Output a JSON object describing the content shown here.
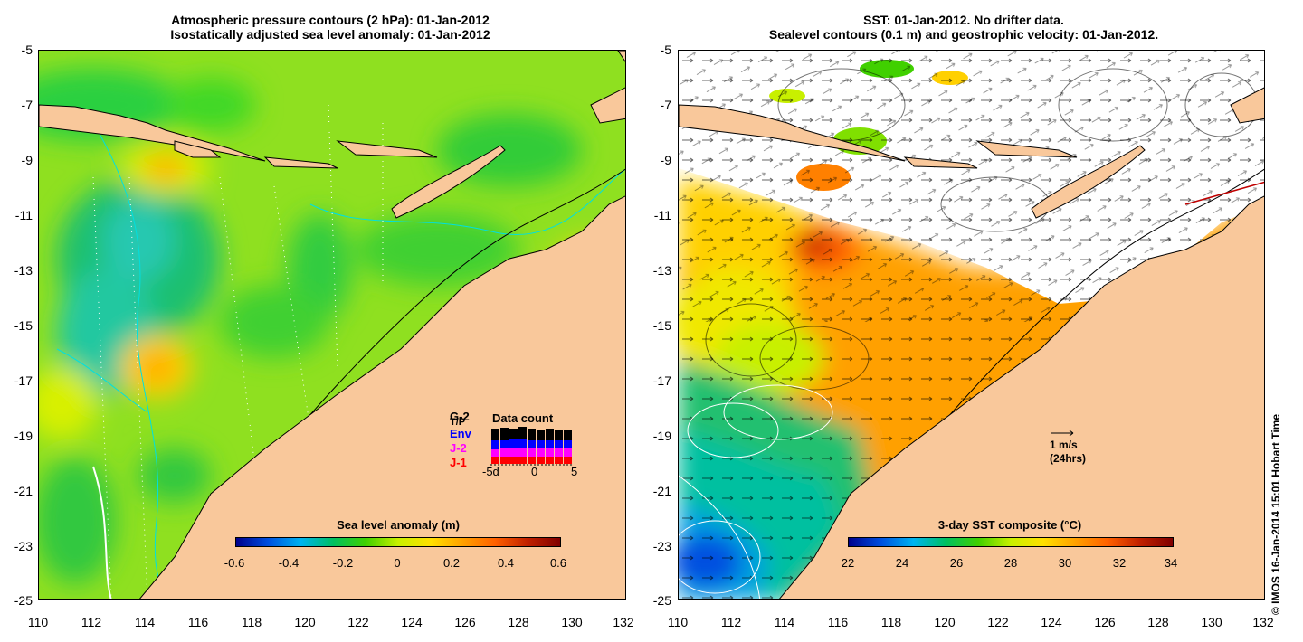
{
  "left_panel": {
    "title_line1": "Atmospheric pressure contours (2 hPa): 01-Jan-2012",
    "title_line2": "Isostatically adjusted sea level anomaly: 01-Jan-2012",
    "colorbar": {
      "label": "Sea level anomaly (m)",
      "ticks": [
        "-0.6",
        "-0.4",
        "-0.2",
        "0",
        "0.2",
        "0.4",
        "0.6"
      ]
    },
    "data_count": {
      "title": "Data count",
      "satellites": [
        {
          "name": "G-2",
          "color": "#000000"
        },
        {
          "name": "T/P",
          "color": "#000000"
        },
        {
          "name": "Env",
          "color": "#0000ff"
        },
        {
          "name": "J-2",
          "color": "#ff00ff"
        },
        {
          "name": "J-1",
          "color": "#ff0000"
        }
      ],
      "axis_ticks": [
        "-5d",
        "0",
        "5"
      ]
    }
  },
  "right_panel": {
    "title_line1": "SST: 01-Jan-2012. No drifter data.",
    "title_line2": "Sealevel contours (0.1 m) and geostrophic velocity: 01-Jan-2012.",
    "colorbar": {
      "label": "3-day SST composite (°C)",
      "ticks": [
        "22",
        "24",
        "26",
        "28",
        "30",
        "32",
        "34"
      ]
    },
    "velocity_scale": {
      "line1": "1 m/s",
      "line2": "(24hrs)"
    }
  },
  "axes": {
    "lat_ticks": [
      "-5",
      "-7",
      "-9",
      "-11",
      "-13",
      "-15",
      "-17",
      "-19",
      "-21",
      "-23",
      "-25"
    ],
    "lon_ticks": [
      "110",
      "112",
      "114",
      "116",
      "118",
      "120",
      "122",
      "124",
      "126",
      "128",
      "130",
      "132"
    ]
  },
  "credit": "© IMOS 16-Jan-2014 15:01 Hobart Time",
  "colors": {
    "land": "#f9c89b",
    "sst_gradient": [
      "#00008c",
      "#0050e0",
      "#00b4f0",
      "#00c060",
      "#40d000",
      "#c8f000",
      "#ffe000",
      "#ffa000",
      "#ff6000",
      "#c02000",
      "#800000"
    ]
  }
}
